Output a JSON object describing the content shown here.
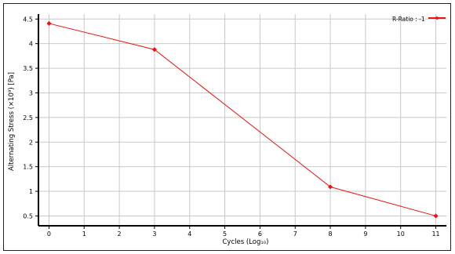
{
  "chart_data": {
    "type": "line",
    "title": "",
    "xlabel": "Cycles  (Log₁₀)",
    "ylabel": "Alternating Stress  (×10⁹)  [Pa]",
    "xlim": [
      -0.3,
      11.3
    ],
    "ylim": [
      0.3,
      4.6
    ],
    "xticks": [
      "0",
      "1",
      "2",
      "3",
      "4",
      "5",
      "6",
      "7",
      "8",
      "9",
      "10",
      "11"
    ],
    "yticks": [
      "0.5",
      "1",
      "1.5",
      "2",
      "2.5",
      "3",
      "3.5",
      "4",
      "4.5"
    ],
    "grid": true,
    "legend_position": "top-right",
    "series": [
      {
        "name": "R-Ratio : -1",
        "color": "#ee1111",
        "x": [
          0,
          3,
          8,
          11
        ],
        "y": [
          4.41,
          3.88,
          1.09,
          0.5
        ]
      }
    ]
  }
}
